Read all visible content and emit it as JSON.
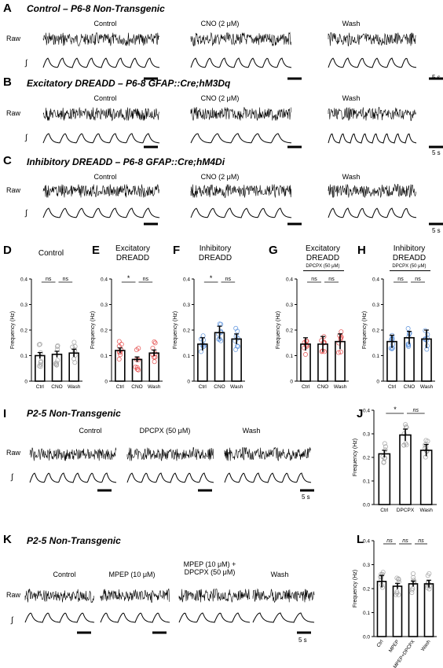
{
  "colors": {
    "control": "#9a9a9a",
    "excitatory": "#e23a3a",
    "inhibitory": "#4a86d8"
  },
  "panels": {
    "A": {
      "letter": "A",
      "title": "Control – P6-8 Non-Transgenic",
      "conditions": [
        "Control",
        "CNO (2 μM)",
        "Wash"
      ]
    },
    "B": {
      "letter": "B",
      "title": "Excitatory DREADD – P6-8 GFAP::Cre;hM3Dq",
      "conditions": [
        "Control",
        "CNO (2 μM)",
        "Wash"
      ]
    },
    "C": {
      "letter": "C",
      "title": "Inhibitory DREADD – P6-8 GFAP::Cre;hM4Di",
      "conditions": [
        "Control",
        "CNO (2 μM)",
        "Wash"
      ]
    },
    "I": {
      "letter": "I",
      "title": "P2-5 Non-Transgenic",
      "conditions": [
        "Control",
        "DPCPX (50 μM)",
        "Wash"
      ]
    },
    "K": {
      "letter": "K",
      "title": "P2-5 Non-Transgenic",
      "conditions": [
        "Control",
        "MPEP (10 μM)",
        "MPEP (10 μM) +",
        "DPCPX (50 μM)",
        "Wash"
      ]
    }
  },
  "trace_labels": {
    "raw": "Raw",
    "integrated": "∫",
    "scale": "5 s"
  },
  "bar_panels": [
    {
      "letter": "D",
      "title_lines": [
        "Control"
      ],
      "subtitle": "",
      "color": "#9a9a9a",
      "chart_data": {
        "type": "bar",
        "ylabel": "Frequency (Hz)",
        "ylim": [
          0,
          0.4
        ],
        "yticks": [
          "0",
          "0.1",
          "0.2",
          "0.3",
          "0.4"
        ],
        "categories": [
          "Ctrl",
          "CNO",
          "Wash"
        ],
        "values": [
          0.1,
          0.105,
          0.11
        ],
        "errors": [
          0.012,
          0.012,
          0.015
        ],
        "significance": [
          "ns",
          "ns"
        ]
      }
    },
    {
      "letter": "E",
      "title_lines": [
        "Excitatory",
        "DREADD"
      ],
      "subtitle": "",
      "color": "#e23a3a",
      "chart_data": {
        "type": "bar",
        "ylabel": "Frequency (Hz)",
        "ylim": [
          0,
          0.4
        ],
        "yticks": [
          "0",
          "0.1",
          "0.2",
          "0.3",
          "0.4"
        ],
        "categories": [
          "Ctrl",
          "CNO",
          "Wash"
        ],
        "values": [
          0.12,
          0.085,
          0.11
        ],
        "errors": [
          0.01,
          0.01,
          0.012
        ],
        "significance": [
          "*",
          "ns"
        ]
      }
    },
    {
      "letter": "F",
      "title_lines": [
        "Inhibitory",
        "DREADD"
      ],
      "subtitle": "",
      "color": "#4a86d8",
      "chart_data": {
        "type": "bar",
        "ylabel": "Frequency (Hz)",
        "ylim": [
          0,
          0.4
        ],
        "yticks": [
          "0",
          "0.1",
          "0.2",
          "0.3",
          "0.4"
        ],
        "categories": [
          "Ctrl",
          "CNO",
          "Wash"
        ],
        "values": [
          0.145,
          0.19,
          0.165
        ],
        "errors": [
          0.025,
          0.025,
          0.02
        ],
        "significance": [
          "*",
          "ns"
        ]
      }
    },
    {
      "letter": "G",
      "title_lines": [
        "Excitatory",
        "DREADD"
      ],
      "subtitle": "DPCPX (50 μM)",
      "color": "#e23a3a",
      "chart_data": {
        "type": "bar",
        "ylabel": "Frequency (Hz)",
        "ylim": [
          0,
          0.4
        ],
        "yticks": [
          "0",
          "0.1",
          "0.2",
          "0.3",
          "0.4"
        ],
        "categories": [
          "Ctrl",
          "CNO",
          "Wash"
        ],
        "values": [
          0.145,
          0.145,
          0.155
        ],
        "errors": [
          0.025,
          0.03,
          0.03
        ],
        "significance": [
          "ns",
          "ns"
        ]
      }
    },
    {
      "letter": "H",
      "title_lines": [
        "Inhibitory",
        "DREADD"
      ],
      "subtitle": "DPCPX (50 μM)",
      "color": "#4a86d8",
      "chart_data": {
        "type": "bar",
        "ylabel": "Frequency (Hz)",
        "ylim": [
          0,
          0.4
        ],
        "yticks": [
          "0",
          "0.1",
          "0.2",
          "0.3",
          "0.4"
        ],
        "categories": [
          "Ctrl",
          "CNO",
          "Wash"
        ],
        "values": [
          0.155,
          0.17,
          0.165
        ],
        "errors": [
          0.025,
          0.025,
          0.035
        ],
        "significance": [
          "ns",
          "ns"
        ]
      }
    },
    {
      "letter": "J",
      "title_lines": [],
      "subtitle": "",
      "color": "#9a9a9a",
      "chart_data": {
        "type": "bar",
        "ylabel": "Frequency (Hz)",
        "ylim": [
          0,
          0.4
        ],
        "yticks": [
          "0.0",
          "0.1",
          "0.2",
          "0.3",
          "0.4"
        ],
        "categories": [
          "Ctrl",
          "DPCPX",
          "Wash"
        ],
        "values": [
          0.215,
          0.295,
          0.23
        ],
        "errors": [
          0.015,
          0.025,
          0.025
        ],
        "significance": [
          "*",
          "ns"
        ]
      }
    },
    {
      "letter": "L",
      "title_lines": [],
      "subtitle": "",
      "color": "#9a9a9a",
      "chart_data": {
        "type": "bar",
        "ylabel": "Frequency (Hz)",
        "ylim": [
          0,
          0.4
        ],
        "yticks": [
          "0.0",
          "0.1",
          "0.2",
          "0.3",
          "0.4"
        ],
        "categories": [
          "Ctrl",
          "MPEP",
          "MPEP+DPCPX",
          "Wash"
        ],
        "values": [
          0.23,
          0.21,
          0.22,
          0.22
        ],
        "errors": [
          0.025,
          0.012,
          0.012,
          0.015
        ],
        "significance": [
          "ns",
          "ns",
          "ns"
        ]
      }
    }
  ]
}
